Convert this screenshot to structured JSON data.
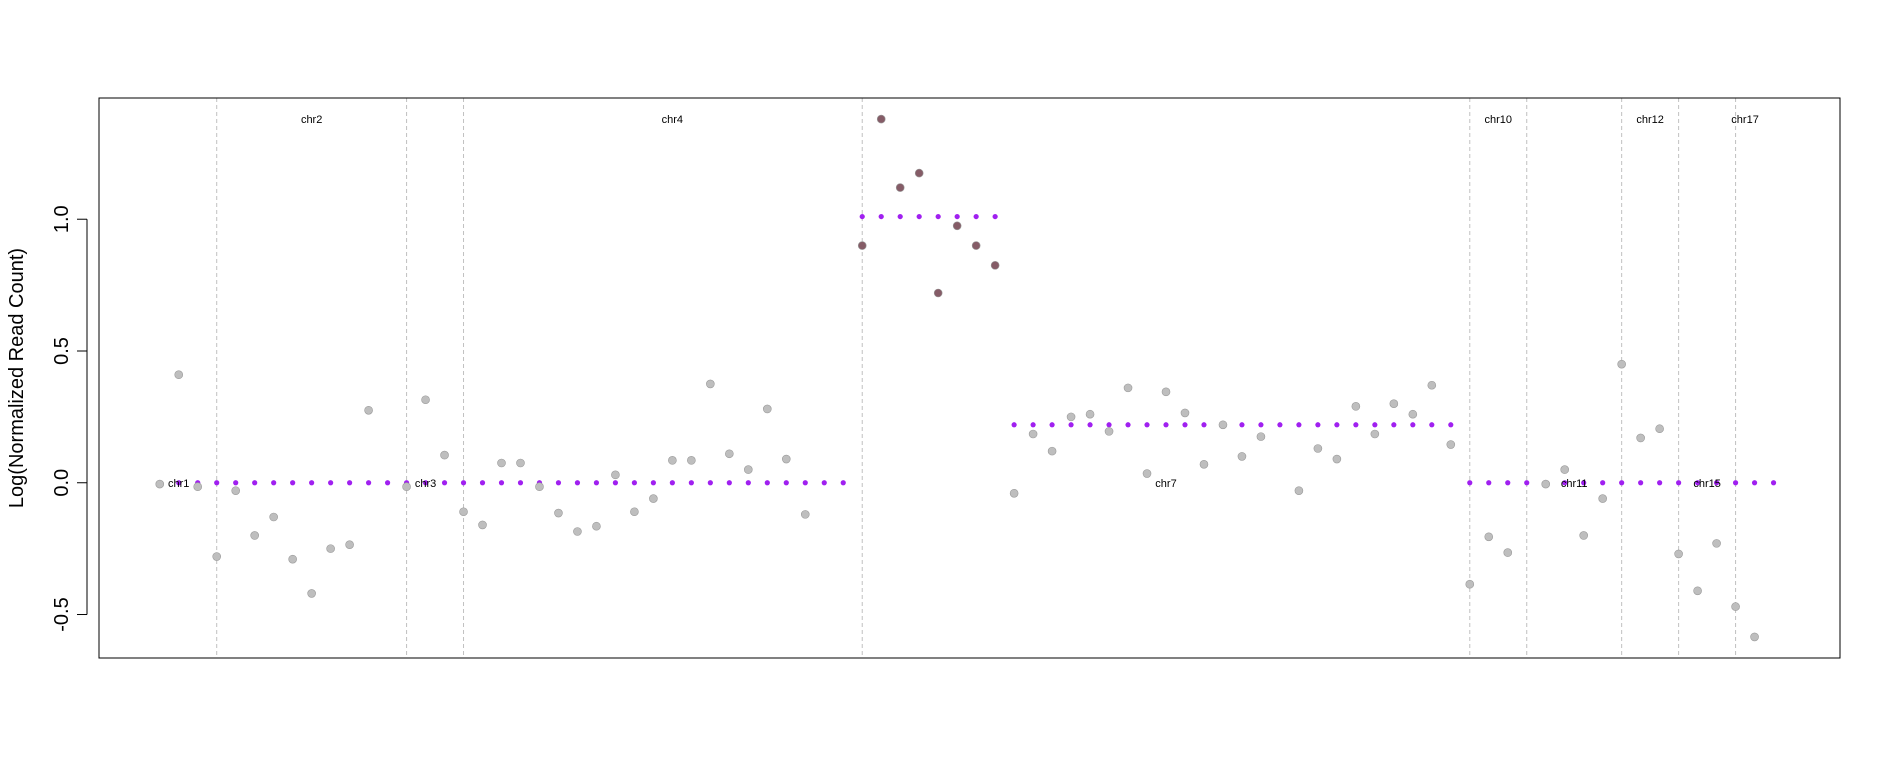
{
  "chart_data": {
    "type": "scatter",
    "title": "",
    "xlabel": "",
    "ylabel": "Log(Normalized Read Count)",
    "xlim": [
      -3.2,
      88.5
    ],
    "ylim": [
      -0.665,
      1.46
    ],
    "yticks": [
      -0.5,
      0.0,
      0.5,
      1.0
    ],
    "ytick_labels": [
      "-0.5",
      "0.0",
      "0.5",
      "1.0"
    ],
    "grid": false,
    "legend": "none",
    "colors": {
      "normal_point": "#bebebe",
      "gain_point": "#855c67",
      "segment": "#a020f0",
      "boundary": "#c0c0c0"
    },
    "chromosome_boundaries": [
      3,
      13,
      16,
      37,
      69,
      72,
      77,
      80,
      83
    ],
    "chromosome_labels": [
      {
        "name": "chr1",
        "x": 1,
        "y": 0.0
      },
      {
        "name": "chr2",
        "x": 8,
        "y": 1.38
      },
      {
        "name": "chr3",
        "x": 14,
        "y": 0.0
      },
      {
        "name": "chr4",
        "x": 27,
        "y": 1.38
      },
      {
        "name": "chr7",
        "x": 53,
        "y": 0.0
      },
      {
        "name": "chr10",
        "x": 70.5,
        "y": 1.38
      },
      {
        "name": "chr11",
        "x": 74.5,
        "y": 0.0
      },
      {
        "name": "chr12",
        "x": 78.5,
        "y": 1.38
      },
      {
        "name": "chr15",
        "x": 81.5,
        "y": 0.0
      },
      {
        "name": "chr17",
        "x": 83.5,
        "y": 1.38
      }
    ],
    "segments": [
      {
        "x_start": 0,
        "x_end": 36,
        "value": 0.0
      },
      {
        "x_start": 37,
        "x_end": 44,
        "value": 1.01
      },
      {
        "x_start": 45,
        "x_end": 68,
        "value": 0.22
      },
      {
        "x_start": 69,
        "x_end": 85,
        "value": 0.0
      }
    ],
    "series": [
      {
        "points": [
          [
            0,
            -0.005
          ],
          [
            1,
            0.41
          ],
          [
            2,
            -0.015
          ],
          [
            3,
            -0.28
          ],
          [
            4,
            -0.03
          ],
          [
            5,
            -0.2
          ],
          [
            6,
            -0.13
          ],
          [
            7,
            -0.29
          ],
          [
            8,
            -0.42
          ],
          [
            9,
            -0.25
          ],
          [
            10,
            -0.235
          ],
          [
            11,
            0.275
          ],
          [
            13,
            -0.015
          ],
          [
            14,
            0.315
          ],
          [
            15,
            0.105
          ],
          [
            16,
            -0.11
          ],
          [
            17,
            -0.16
          ],
          [
            18,
            0.075
          ],
          [
            19,
            0.075
          ],
          [
            20,
            -0.015
          ],
          [
            21,
            -0.115
          ],
          [
            22,
            -0.185
          ],
          [
            23,
            -0.165
          ],
          [
            24,
            0.03
          ],
          [
            25,
            -0.11
          ],
          [
            26,
            -0.06
          ],
          [
            27,
            0.085
          ],
          [
            28,
            0.085
          ],
          [
            29,
            0.375
          ],
          [
            30,
            0.11
          ],
          [
            31,
            0.05
          ],
          [
            32,
            0.28
          ],
          [
            33,
            0.09
          ],
          [
            34,
            -0.12
          ],
          [
            45,
            -0.04
          ],
          [
            46,
            0.185
          ],
          [
            47,
            0.12
          ],
          [
            48,
            0.25
          ],
          [
            49,
            0.26
          ],
          [
            50,
            0.195
          ],
          [
            51,
            0.36
          ],
          [
            52,
            0.035
          ],
          [
            53,
            0.345
          ],
          [
            54,
            0.265
          ],
          [
            55,
            0.07
          ],
          [
            56,
            0.22
          ],
          [
            57,
            0.1
          ],
          [
            58,
            0.175
          ],
          [
            60,
            -0.03
          ],
          [
            61,
            0.13
          ],
          [
            62,
            0.09
          ],
          [
            63,
            0.29
          ],
          [
            64,
            0.185
          ],
          [
            65,
            0.3
          ],
          [
            66,
            0.26
          ],
          [
            67,
            0.37
          ],
          [
            68,
            0.145
          ],
          [
            69,
            -0.385
          ],
          [
            70,
            -0.205
          ],
          [
            71,
            -0.265
          ],
          [
            73,
            -0.005
          ],
          [
            74,
            0.05
          ],
          [
            75,
            -0.2
          ],
          [
            76,
            -0.06
          ],
          [
            77,
            0.45
          ],
          [
            78,
            0.17
          ],
          [
            79,
            0.205
          ],
          [
            80,
            -0.27
          ],
          [
            81,
            -0.41
          ],
          [
            82,
            -0.23
          ],
          [
            83,
            -0.47
          ],
          [
            84,
            -0.585
          ]
        ]
      },
      {
        "points": [
          [
            37,
            0.9
          ],
          [
            38,
            1.38
          ],
          [
            39,
            1.12
          ],
          [
            40,
            1.175
          ],
          [
            41,
            0.72
          ],
          [
            42,
            0.975
          ],
          [
            43,
            0.9
          ],
          [
            44,
            0.825
          ]
        ]
      }
    ]
  }
}
